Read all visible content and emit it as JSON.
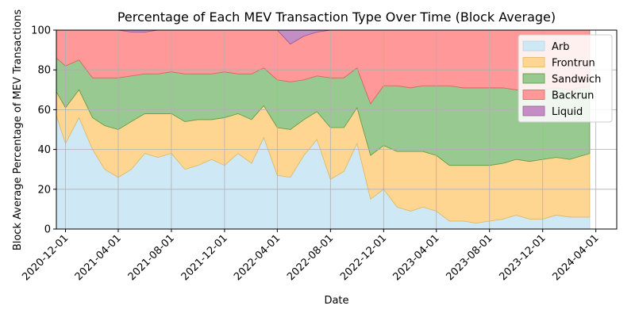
{
  "chart_data": {
    "type": "area",
    "stacked": true,
    "title": "Percentage of Each MEV Transaction Type Over Time (Block Average)",
    "xlabel": "Date",
    "ylabel": "Block Average Percentage of MEV Transactions",
    "ylim": [
      0,
      100
    ],
    "xlim": [
      "2020-11-10",
      "2024-03-18"
    ],
    "grid": true,
    "legend_position": "top-right",
    "x_ticks": [
      "2020-12-01",
      "2021-04-01",
      "2021-08-01",
      "2021-12-01",
      "2022-04-01",
      "2022-08-01",
      "2022-12-01",
      "2023-04-01",
      "2023-08-01",
      "2023-12-01",
      "2024-04-01"
    ],
    "y_ticks": [
      0,
      20,
      40,
      60,
      80,
      100
    ],
    "x": [
      "2020-11-10",
      "2020-12-01",
      "2021-01-01",
      "2021-02-01",
      "2021-03-01",
      "2021-04-01",
      "2021-05-01",
      "2021-06-01",
      "2021-07-01",
      "2021-08-01",
      "2021-09-01",
      "2021-10-01",
      "2021-11-01",
      "2021-12-01",
      "2022-01-01",
      "2022-02-01",
      "2022-03-01",
      "2022-04-01",
      "2022-05-01",
      "2022-06-01",
      "2022-07-01",
      "2022-08-01",
      "2022-09-01",
      "2022-10-01",
      "2022-11-01",
      "2022-12-01",
      "2023-01-01",
      "2023-02-01",
      "2023-03-01",
      "2023-04-01",
      "2023-05-01",
      "2023-06-01",
      "2023-07-01",
      "2023-08-01",
      "2023-09-01",
      "2023-10-01",
      "2023-11-01",
      "2023-12-01",
      "2024-01-01",
      "2024-02-01",
      "2024-03-18"
    ],
    "series": [
      {
        "name": "Arb",
        "color": "#cfe8f6",
        "values": [
          57,
          43,
          56,
          40,
          30,
          26,
          30,
          38,
          36,
          38,
          30,
          32,
          35,
          32,
          38,
          33,
          46,
          27,
          26,
          37,
          45,
          25,
          29,
          43,
          15,
          20,
          11,
          9,
          11,
          9,
          4,
          4,
          3,
          4,
          5,
          7,
          5,
          5,
          7,
          6,
          6
        ]
      },
      {
        "name": "Frontrun",
        "color": "#ffd592",
        "values": [
          12,
          18,
          14,
          16,
          22,
          24,
          24,
          20,
          22,
          20,
          24,
          23,
          20,
          24,
          20,
          22,
          16,
          24,
          24,
          18,
          14,
          26,
          22,
          18,
          22,
          22,
          28,
          30,
          28,
          28,
          28,
          28,
          29,
          28,
          28,
          28,
          29,
          30,
          29,
          29,
          32
        ]
      },
      {
        "name": "Sandwich",
        "color": "#98c990",
        "values": [
          17,
          21,
          15,
          20,
          24,
          26,
          23,
          20,
          20,
          21,
          24,
          23,
          23,
          23,
          20,
          23,
          19,
          24,
          24,
          20,
          18,
          25,
          25,
          20,
          26,
          30,
          33,
          32,
          33,
          35,
          40,
          39,
          39,
          39,
          38,
          35,
          36,
          35,
          35,
          35,
          34
        ]
      },
      {
        "name": "Backrun",
        "color": "#ff9999",
        "values": [
          14,
          18,
          15,
          24,
          24,
          24,
          22,
          21,
          22,
          21,
          22,
          22,
          22,
          21,
          22,
          22,
          19,
          25,
          19,
          22,
          22,
          24,
          24,
          19,
          37,
          28,
          28,
          29,
          28,
          28,
          28,
          29,
          29,
          29,
          29,
          30,
          30,
          30,
          29,
          30,
          28
        ]
      },
      {
        "name": "Liquid",
        "color": "#c38ec4",
        "values": [
          0,
          0,
          0,
          0,
          0,
          0,
          1,
          1,
          0,
          0,
          0,
          0,
          0,
          0,
          0,
          0,
          0,
          0,
          7,
          3,
          1,
          0,
          0,
          0,
          0,
          0,
          0,
          0,
          0,
          0,
          0,
          0,
          0,
          0,
          0,
          0,
          0,
          0,
          0,
          0,
          0
        ]
      }
    ]
  }
}
